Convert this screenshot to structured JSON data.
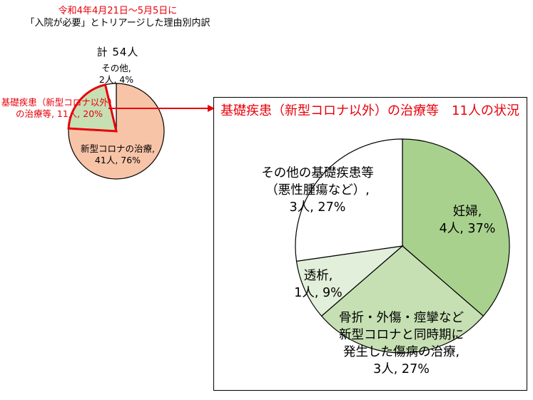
{
  "header": {
    "line1": "令和4年4月21日～5月5日に",
    "line2": "「入院が必要」とトリアージした理由別内訳"
  },
  "summary": {
    "total_label": "計 54人"
  },
  "colors": {
    "accent_red": "#e8000b",
    "covid": "#f8c4a8",
    "underlying": "#c6e0b4",
    "other": "#ffffff",
    "pregnancy": "#a9d18e",
    "fracture": "#c6e0b4",
    "dialysis": "#e2efda",
    "other_underlying": "#ffffff"
  },
  "chart_data": [
    {
      "type": "pie",
      "title": "",
      "slices": [
        {
          "label_lines": [
            "新型コロナの治療,",
            "41人, 76%"
          ],
          "count": 41,
          "percent": 76,
          "color_key": "covid"
        },
        {
          "label_lines": [
            "基礎疾患（新型コロナ以外）",
            "の治療等, 11人, 20%"
          ],
          "count": 11,
          "percent": 20,
          "color_key": "underlying",
          "highlighted": true
        },
        {
          "label_lines": [
            "その他,",
            "2人, 4%"
          ],
          "count": 2,
          "percent": 4,
          "color_key": "other"
        }
      ]
    },
    {
      "type": "pie",
      "title": "基礎疾患（新型コロナ以外）の治療等　11人の状況",
      "slices": [
        {
          "label_lines": [
            "妊婦,",
            "4人, 37%"
          ],
          "count": 4,
          "percent": 37,
          "color_key": "pregnancy"
        },
        {
          "label_lines": [
            "骨折・外傷・痙攣など",
            "新型コロナと同時期に",
            "発生した傷病の治療,",
            "3人, 27%"
          ],
          "count": 3,
          "percent": 27,
          "color_key": "fracture"
        },
        {
          "label_lines": [
            "透析,",
            "1人, 9%"
          ],
          "count": 1,
          "percent": 9,
          "color_key": "dialysis"
        },
        {
          "label_lines": [
            "その他の基礎疾患等",
            "（悪性腫瘍など）,",
            "3人, 27%"
          ],
          "count": 3,
          "percent": 27,
          "color_key": "other_underlying"
        }
      ]
    }
  ]
}
